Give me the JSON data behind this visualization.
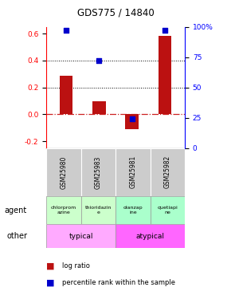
{
  "title": "GDS775 / 14840",
  "samples": [
    "GSM25980",
    "GSM25983",
    "GSM25981",
    "GSM25982"
  ],
  "log_ratio": [
    0.285,
    0.095,
    -0.11,
    0.585
  ],
  "percentile_rank": [
    97,
    72,
    24,
    97
  ],
  "agent_labels": [
    "chlorprom\nazine",
    "thioridazin\ne",
    "olanzap\nine",
    "quetiapi\nne"
  ],
  "agent_colors_left": "#ccffcc",
  "agent_colors_right": "#aaffcc",
  "other_color_left": "#ffaaff",
  "other_color_right": "#ff66ff",
  "ylim_left": [
    -0.25,
    0.65
  ],
  "ylim_right": [
    0,
    100
  ],
  "yticks_left": [
    -0.2,
    0.0,
    0.2,
    0.4,
    0.6
  ],
  "yticks_right": [
    0,
    25,
    50,
    75,
    100
  ],
  "ytick_labels_right": [
    "0",
    "25",
    "50",
    "75",
    "100%"
  ],
  "dotted_lines": [
    0.2,
    0.4
  ],
  "bar_color": "#bb1111",
  "dot_color": "#0000cc",
  "zero_line_color": "#cc2222",
  "gray_bg": "#cccccc",
  "bar_width": 0.4
}
